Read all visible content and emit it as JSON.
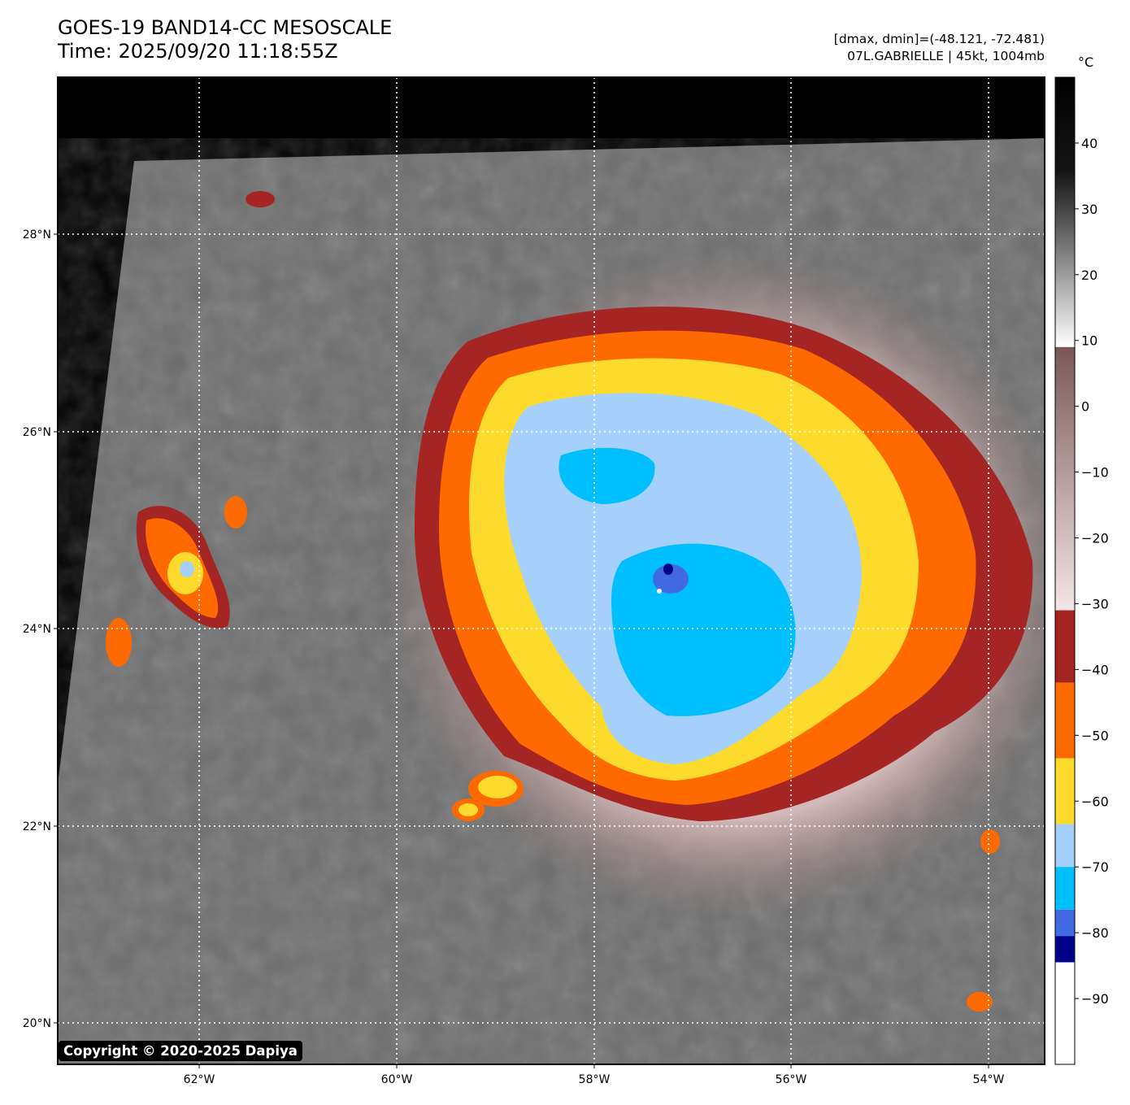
{
  "header": {
    "title_line1": "GOES-19 BAND14-CC MESOSCALE",
    "title_line2": "Time: 2025/09/20 11:18:55Z",
    "range_text": "[dmax, dmin]=(-48.121, -72.481)",
    "storm_text": "07L.GABRIELLE | 45kt, 1004mb"
  },
  "axes": {
    "lat_labels": [
      "28°N",
      "26°N",
      "24°N",
      "22°N",
      "20°N"
    ],
    "lon_labels": [
      "62°W",
      "60°W",
      "58°W",
      "56°W",
      "54°W"
    ]
  },
  "colorbar": {
    "unit": "°C",
    "tick_labels": [
      "40",
      "30",
      "20",
      "10",
      "0",
      "−10",
      "−20",
      "−30",
      "−40",
      "−50",
      "−60",
      "−70",
      "−80",
      "−90"
    ],
    "tick_values": [
      40,
      30,
      20,
      10,
      0,
      -10,
      -20,
      -30,
      -40,
      -50,
      -60,
      -70,
      -80,
      -90
    ],
    "range": [
      50,
      -100
    ],
    "bands": [
      {
        "from": 50,
        "to": 9,
        "kind": "gray"
      },
      {
        "from": 9,
        "to": -31,
        "color_top": "#7a5757",
        "color_bottom": "#f4e6e6"
      },
      {
        "from": -31,
        "to": -42,
        "color": "#a52424"
      },
      {
        "from": -42,
        "to": -53.5,
        "color": "#ff6a00"
      },
      {
        "from": -53.5,
        "to": -63.5,
        "color": "#fcdb2c"
      },
      {
        "from": -63.5,
        "to": -70,
        "color": "#a5d0fb"
      },
      {
        "from": -70,
        "to": -76.5,
        "color": "#00bfff"
      },
      {
        "from": -76.5,
        "to": -80.5,
        "color": "#4169e1"
      },
      {
        "from": -80.5,
        "to": -84.5,
        "color": "#00008b"
      },
      {
        "from": -84.5,
        "to": -100,
        "color": "#ffffff"
      }
    ]
  },
  "colors": {
    "deep_red": "#a52424",
    "orange": "#ff6a00",
    "yellow": "#fcdb2c",
    "light_blue": "#a5d0fb",
    "cyan": "#00bfff",
    "royal_blue": "#4169e1",
    "navy": "#00008b"
  },
  "copyright": "Copyright © 2020-2025 Dapiya"
}
